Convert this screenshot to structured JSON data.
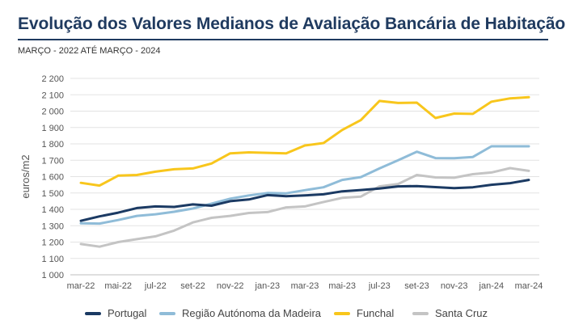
{
  "chart_data": {
    "type": "line",
    "title": "Evolução dos Valores Medianos de Avaliação Bancária de Habitação",
    "subtitle": "MARÇO - 2022 ATÉ MARÇO - 2024",
    "ylabel": "euros/m2",
    "xlabel": "",
    "ylim": [
      1000,
      2200
    ],
    "yticks": [
      1000,
      1100,
      1200,
      1300,
      1400,
      1500,
      1600,
      1700,
      1800,
      1900,
      2000,
      2100,
      2200
    ],
    "ytick_labels": [
      "1 000",
      "1 100",
      "1 200",
      "1 300",
      "1 400",
      "1 500",
      "1 600",
      "1 700",
      "1 800",
      "1 900",
      "2 000",
      "2 100",
      "2 200"
    ],
    "xtick_labels": [
      "mar-22",
      "mai-22",
      "jul-22",
      "set-22",
      "nov-22",
      "jan-23",
      "mar-23",
      "mai-23",
      "jul-23",
      "set-23",
      "nov-23",
      "jan-24",
      "mar-24"
    ],
    "n_points": 25,
    "grid": true,
    "legend_position": "bottom",
    "series": [
      {
        "name": "Portugal",
        "color": "#1b3a63",
        "values": [
          1330,
          1357,
          1380,
          1408,
          1418,
          1415,
          1430,
          1422,
          1450,
          1460,
          1487,
          1480,
          1485,
          1492,
          1510,
          1518,
          1527,
          1540,
          1542,
          1536,
          1530,
          1535,
          1550,
          1560,
          1580
        ]
      },
      {
        "name": "Região Autónoma da Madeira",
        "color": "#8fbcd8",
        "values": [
          1315,
          1313,
          1335,
          1360,
          1370,
          1385,
          1405,
          1435,
          1465,
          1485,
          1500,
          1498,
          1517,
          1535,
          1580,
          1597,
          1650,
          1700,
          1752,
          1713,
          1712,
          1720,
          1785,
          1785,
          1785
        ]
      },
      {
        "name": "Funchal",
        "color": "#f8c61c",
        "values": [
          1562,
          1545,
          1606,
          1610,
          1630,
          1645,
          1650,
          1680,
          1742,
          1748,
          1745,
          1742,
          1790,
          1805,
          1885,
          1945,
          2062,
          2050,
          2052,
          1958,
          1985,
          1983,
          2058,
          2078,
          2085
        ]
      },
      {
        "name": "Santa Cruz",
        "color": "#c4c4c4",
        "values": [
          1188,
          1172,
          1200,
          1218,
          1235,
          1270,
          1320,
          1348,
          1360,
          1378,
          1383,
          1412,
          1418,
          1445,
          1470,
          1478,
          1540,
          1555,
          1610,
          1595,
          1593,
          1615,
          1625,
          1652,
          1635
        ]
      }
    ]
  }
}
